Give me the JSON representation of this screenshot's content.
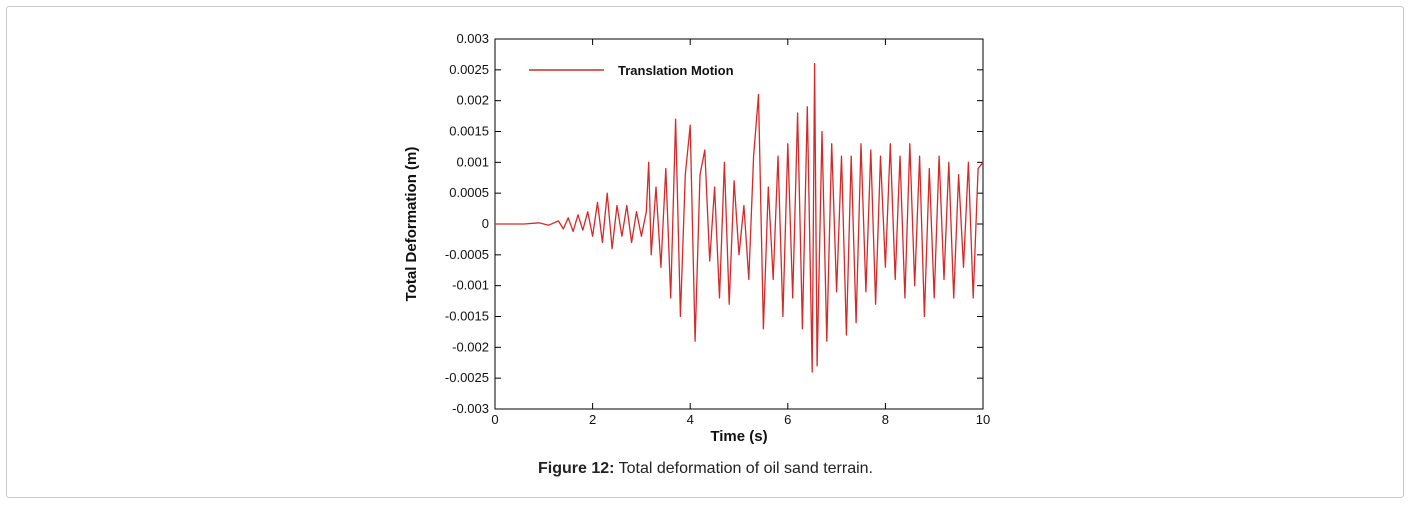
{
  "caption": {
    "label": "Figure 12:",
    "text": " Total deformation of oil sand terrain."
  },
  "colors": {
    "series": "#d42a2a",
    "axis": "#000000"
  },
  "chart_data": {
    "type": "line",
    "title": "",
    "xlabel": "Time (s)",
    "ylabel": "Total Deformation (m)",
    "xlim": [
      0,
      10
    ],
    "ylim": [
      -0.003,
      0.003
    ],
    "x_ticks": [
      "0",
      "2",
      "4",
      "6",
      "8",
      "10"
    ],
    "y_ticks": [
      "0.003",
      "0.0025",
      "0.002",
      "0.0015",
      "0.001",
      "0.0005",
      "0",
      "-0.0005",
      "-0.001",
      "-0.0015",
      "-0.002",
      "-0.0025",
      "-0.003"
    ],
    "legend_position": "top-left",
    "series": [
      {
        "name": "Translation Motion",
        "color": "#d42a2a",
        "x": [
          0,
          0.3,
          0.6,
          0.9,
          1.1,
          1.3,
          1.4,
          1.5,
          1.6,
          1.7,
          1.8,
          1.9,
          2.0,
          2.1,
          2.2,
          2.3,
          2.4,
          2.5,
          2.6,
          2.7,
          2.8,
          2.9,
          3.0,
          3.1,
          3.15,
          3.2,
          3.3,
          3.4,
          3.5,
          3.6,
          3.7,
          3.8,
          3.9,
          4.0,
          4.1,
          4.2,
          4.3,
          4.4,
          4.5,
          4.6,
          4.7,
          4.8,
          4.9,
          5.0,
          5.1,
          5.2,
          5.3,
          5.4,
          5.5,
          5.6,
          5.7,
          5.8,
          5.9,
          6.0,
          6.1,
          6.2,
          6.3,
          6.4,
          6.5,
          6.55,
          6.6,
          6.7,
          6.8,
          6.9,
          7.0,
          7.1,
          7.2,
          7.3,
          7.4,
          7.5,
          7.6,
          7.7,
          7.8,
          7.9,
          8.0,
          8.1,
          8.2,
          8.3,
          8.4,
          8.5,
          8.6,
          8.7,
          8.8,
          8.9,
          9.0,
          9.1,
          9.2,
          9.3,
          9.4,
          9.5,
          9.6,
          9.7,
          9.8,
          9.9,
          10.0
        ],
        "values": [
          0,
          0,
          0,
          2e-05,
          -2e-05,
          5e-05,
          -8e-05,
          0.0001,
          -0.00012,
          0.00015,
          -0.0001,
          0.0002,
          -0.0002,
          0.00035,
          -0.0003,
          0.0005,
          -0.0004,
          0.0003,
          -0.0002,
          0.0003,
          -0.0003,
          0.0002,
          -0.0002,
          0.0002,
          0.001,
          -0.0005,
          0.0006,
          -0.0007,
          0.0009,
          -0.0012,
          0.0017,
          -0.0015,
          0.0008,
          0.0016,
          -0.0019,
          0.0008,
          0.0012,
          -0.0006,
          0.0006,
          -0.0012,
          0.001,
          -0.0013,
          0.0007,
          -0.0005,
          0.0003,
          -0.0009,
          0.0011,
          0.0021,
          -0.0017,
          0.0006,
          -0.0009,
          0.0011,
          -0.0015,
          0.0013,
          -0.0012,
          0.0018,
          -0.0017,
          0.0019,
          -0.0024,
          0.0026,
          -0.0023,
          0.0015,
          -0.0019,
          0.0013,
          -0.0011,
          0.0011,
          -0.0018,
          0.0011,
          -0.0016,
          0.0013,
          -0.0011,
          0.0012,
          -0.0013,
          0.0011,
          -0.0007,
          0.0013,
          -0.0009,
          0.0011,
          -0.0012,
          0.0013,
          -0.001,
          0.0011,
          -0.0015,
          0.0009,
          -0.0012,
          0.0011,
          -0.0009,
          0.001,
          -0.0012,
          0.0008,
          -0.0007,
          0.001,
          -0.0012,
          0.0009,
          0.001
        ]
      }
    ]
  }
}
